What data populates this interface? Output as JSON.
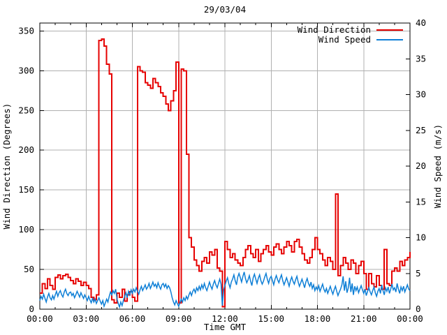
{
  "window": {
    "title": "29/03/04"
  },
  "colors": {
    "direction": "#e60000",
    "speed": "#0e7fd6",
    "grid": "#b0b0b0",
    "frame": "#000000",
    "title": "#5a2a2a",
    "background": "#ffffff"
  },
  "chart_data": {
    "type": "line",
    "title": "29/03/04",
    "xlabel": "Time GMT",
    "x_range_hours": [
      0,
      24
    ],
    "x_major_hours": 3,
    "x_minor_hours": 1,
    "x_tick_labels": [
      "00:00",
      "03:00",
      "06:00",
      "09:00",
      "12:00",
      "15:00",
      "18:00",
      "21:00",
      "00:00"
    ],
    "grid": true,
    "legend_position": "top-right",
    "legend": [
      {
        "label": "Wind Direction",
        "color_key": "direction"
      },
      {
        "label": "Wind Speed",
        "color_key": "speed"
      }
    ],
    "y_left": {
      "label": "Wind Direction (Degrees)",
      "lim": [
        0,
        360
      ],
      "ticks": [
        0,
        50,
        100,
        150,
        200,
        250,
        300,
        350
      ]
    },
    "y_right": {
      "label": "Wind Speed (m/s)",
      "lim": [
        0,
        40
      ],
      "ticks": [
        0,
        5,
        10,
        15,
        20,
        25,
        30,
        35,
        40
      ]
    },
    "series": [
      {
        "name": "Wind Direction",
        "axis": "left",
        "style": "steps",
        "color_key": "direction",
        "unit": "degrees",
        "start_hour": 0,
        "interval_minutes": 10,
        "values": [
          20,
          32,
          26,
          38,
          30,
          25,
          40,
          43,
          38,
          42,
          44,
          40,
          36,
          32,
          38,
          35,
          30,
          34,
          30,
          26,
          15,
          12,
          18,
          338,
          340,
          331,
          308,
          296,
          12,
          8,
          20,
          15,
          25,
          10,
          18,
          22,
          15,
          10,
          305,
          300,
          298,
          285,
          282,
          278,
          290,
          285,
          280,
          272,
          268,
          258,
          250,
          262,
          275,
          311,
          8,
          302,
          300,
          195,
          90,
          78,
          62,
          55,
          48,
          60,
          65,
          58,
          72,
          68,
          75,
          52,
          48,
          3,
          85,
          75,
          65,
          70,
          62,
          58,
          55,
          65,
          75,
          80,
          70,
          65,
          75,
          60,
          70,
          75,
          80,
          72,
          68,
          78,
          82,
          75,
          70,
          78,
          85,
          80,
          72,
          85,
          88,
          78,
          70,
          62,
          58,
          65,
          75,
          90,
          75,
          70,
          62,
          55,
          65,
          60,
          50,
          145,
          42,
          55,
          65,
          58,
          50,
          62,
          58,
          45,
          55,
          60,
          45,
          25,
          45,
          32,
          28,
          42,
          30,
          25,
          75,
          32,
          30,
          48,
          52,
          48,
          60,
          55,
          62,
          65,
          72
        ]
      },
      {
        "name": "Wind Speed",
        "axis": "right",
        "style": "line",
        "color_key": "speed",
        "unit": "m/s",
        "start_hour": 0,
        "interval_minutes": 5,
        "values": [
          1.2,
          1.8,
          1.4,
          2.1,
          1.5,
          1.0,
          1.7,
          2.2,
          1.6,
          1.3,
          1.9,
          1.4,
          2.0,
          2.5,
          1.8,
          2.3,
          2.6,
          2.0,
          1.7,
          2.4,
          2.8,
          2.2,
          1.9,
          2.3,
          2.4,
          1.9,
          2.2,
          1.6,
          2.0,
          2.5,
          2.1,
          1.7,
          2.3,
          1.9,
          1.5,
          2.0,
          1.6,
          1.2,
          1.8,
          1.3,
          0.9,
          1.5,
          1.0,
          1.4,
          0.8,
          1.2,
          1.6,
          1.1,
          0.7,
          1.2,
          0.4,
          0.9,
          1.4,
          1.0,
          1.8,
          2.4,
          2.0,
          2.6,
          2.2,
          2.8,
          1.5,
          0.8,
          0.3,
          1.0,
          0.5,
          1.2,
          1.8,
          2.3,
          1.6,
          2.5,
          2.0,
          2.7,
          2.2,
          2.8,
          2.4,
          3.0,
          2.5,
          2.1,
          2.7,
          3.2,
          2.6,
          3.0,
          3.4,
          2.8,
          3.1,
          3.6,
          2.9,
          3.3,
          3.8,
          3.2,
          3.5,
          3.0,
          3.7,
          3.2,
          2.8,
          3.4,
          3.6,
          3.1,
          3.5,
          2.9,
          3.3,
          3.0,
          2.4,
          1.6,
          1.0,
          0.6,
          1.2,
          0.8,
          0.4,
          0.9,
          1.4,
          1.0,
          1.6,
          1.2,
          1.8,
          1.4,
          2.0,
          2.4,
          1.9,
          2.5,
          2.8,
          2.3,
          3.0,
          2.6,
          3.2,
          2.7,
          3.4,
          2.9,
          3.6,
          3.0,
          2.6,
          3.2,
          3.8,
          3.2,
          2.8,
          3.5,
          4.0,
          3.4,
          3.0,
          3.6,
          4.2,
          3.5,
          0.5,
          2.7,
          3.3,
          3.9,
          4.4,
          3.6,
          3.0,
          3.8,
          4.2,
          4.8,
          4.0,
          3.4,
          4.5,
          5.0,
          4.4,
          3.8,
          4.6,
          5.2,
          4.3,
          3.7,
          4.1,
          4.7,
          3.9,
          3.3,
          4.4,
          4.9,
          4.2,
          3.6,
          4.3,
          4.8,
          4.0,
          3.5,
          3.9,
          4.5,
          5.0,
          4.2,
          3.6,
          4.3,
          4.6,
          4.0,
          3.4,
          4.2,
          4.7,
          4.1,
          3.7,
          4.3,
          4.8,
          4.0,
          3.4,
          3.9,
          4.4,
          3.8,
          3.2,
          4.0,
          4.5,
          3.9,
          3.5,
          4.1,
          4.6,
          3.8,
          3.2,
          3.7,
          4.2,
          3.6,
          3.0,
          3.8,
          4.3,
          3.6,
          3.2,
          3.8,
          2.9,
          3.4,
          2.6,
          3.1,
          2.7,
          3.3,
          2.5,
          3.0,
          3.5,
          2.8,
          2.4,
          2.9,
          2.2,
          2.7,
          3.2,
          2.6,
          2.1,
          2.7,
          3.2,
          2.5,
          1.9,
          2.4,
          2.8,
          3.4,
          4.6,
          2.6,
          3.9,
          2.3,
          3.0,
          4.4,
          2.4,
          3.6,
          2.0,
          3.2,
          2.6,
          3.1,
          2.3,
          2.8,
          3.3,
          2.7,
          2.2,
          2.8,
          1.9,
          2.5,
          3.0,
          2.4,
          2.0,
          2.6,
          3.1,
          2.3,
          1.8,
          2.5,
          2.9,
          2.2,
          3.4,
          2.6,
          2.0,
          3.0,
          2.5,
          3.1,
          2.2,
          2.8,
          3.5,
          2.7,
          3.0,
          2.4,
          3.6,
          2.8,
          2.2,
          3.1,
          2.6,
          3.2,
          2.4,
          2.9,
          3.4,
          2.8,
          2.6
        ]
      }
    ]
  }
}
